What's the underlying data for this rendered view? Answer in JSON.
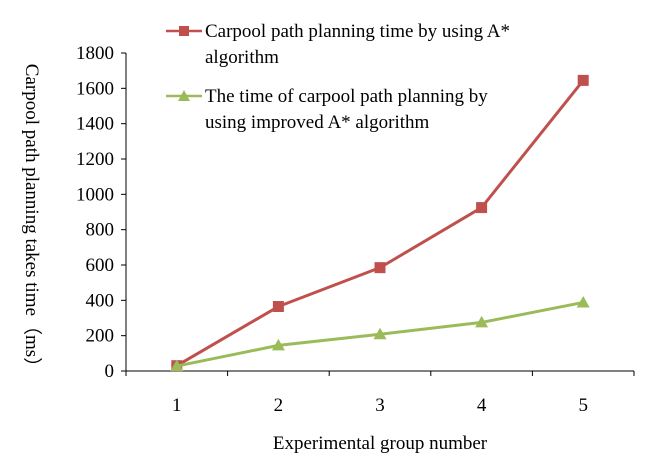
{
  "chart_data": {
    "type": "line",
    "categories": [
      "1",
      "2",
      "3",
      "4",
      "5"
    ],
    "series": [
      {
        "name": "Carpool path planning time by using A* algorithm",
        "name_lines": [
          "Carpool path planning time by using A*",
          "algorithm"
        ],
        "values": [
          30,
          365,
          585,
          925,
          1645
        ],
        "color": "#c0504d",
        "marker": "square"
      },
      {
        "name": "The time of carpool path planning by using improved A* algorithm",
        "name_lines": [
          "The time of carpool path planning by",
          "using improved A* algorithm"
        ],
        "values": [
          28,
          145,
          208,
          275,
          388
        ],
        "color": "#9bbb59",
        "marker": "triangle"
      }
    ],
    "xlabel": "Experimental group number",
    "ylabel": "Carpool path planning takes time（ms）",
    "ylim": [
      0,
      1800
    ],
    "yticks": [
      "0",
      "200",
      "400",
      "600",
      "800",
      "1000",
      "1200",
      "1400",
      "1600",
      "1800"
    ],
    "grid": false,
    "legend_position": "top"
  }
}
